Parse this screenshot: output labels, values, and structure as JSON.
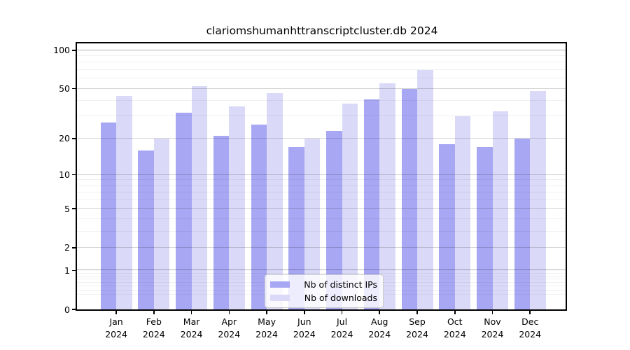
{
  "title": "clariomshumanhttranscriptcluster.db 2024",
  "chart_data": {
    "type": "bar",
    "title": "clariomshumanhttranscriptcluster.db 2024",
    "categories": [
      "Jan",
      "Feb",
      "Mar",
      "Apr",
      "May",
      "Jun",
      "Jul",
      "Aug",
      "Sep",
      "Oct",
      "Nov",
      "Dec"
    ],
    "year_label": "2024",
    "series": [
      {
        "name": "Nb of distinct IPs",
        "color": "#a7a7f4",
        "values": [
          27,
          16,
          32,
          21,
          26,
          17,
          23,
          41,
          50,
          18,
          17,
          20
        ]
      },
      {
        "name": "Nb of downloads",
        "color": "#dadaf8",
        "values": [
          44,
          20,
          52,
          36,
          46,
          20,
          38,
          55,
          70,
          30,
          33,
          48
        ]
      }
    ],
    "xlabel": "",
    "ylabel": "",
    "yscale": "log1p",
    "ylim": [
      0,
      113
    ],
    "yticks": [
      0,
      1,
      2,
      5,
      10,
      20,
      50,
      100
    ],
    "yticks_strong": [
      1,
      100
    ],
    "yticks_minor": [
      0.3,
      0.4,
      0.5,
      0.6,
      0.7,
      0.8,
      0.9,
      3,
      4,
      6,
      7,
      8,
      9,
      30,
      40,
      60,
      70,
      80,
      90
    ],
    "grid": true,
    "legend_position": "bottom-center"
  }
}
